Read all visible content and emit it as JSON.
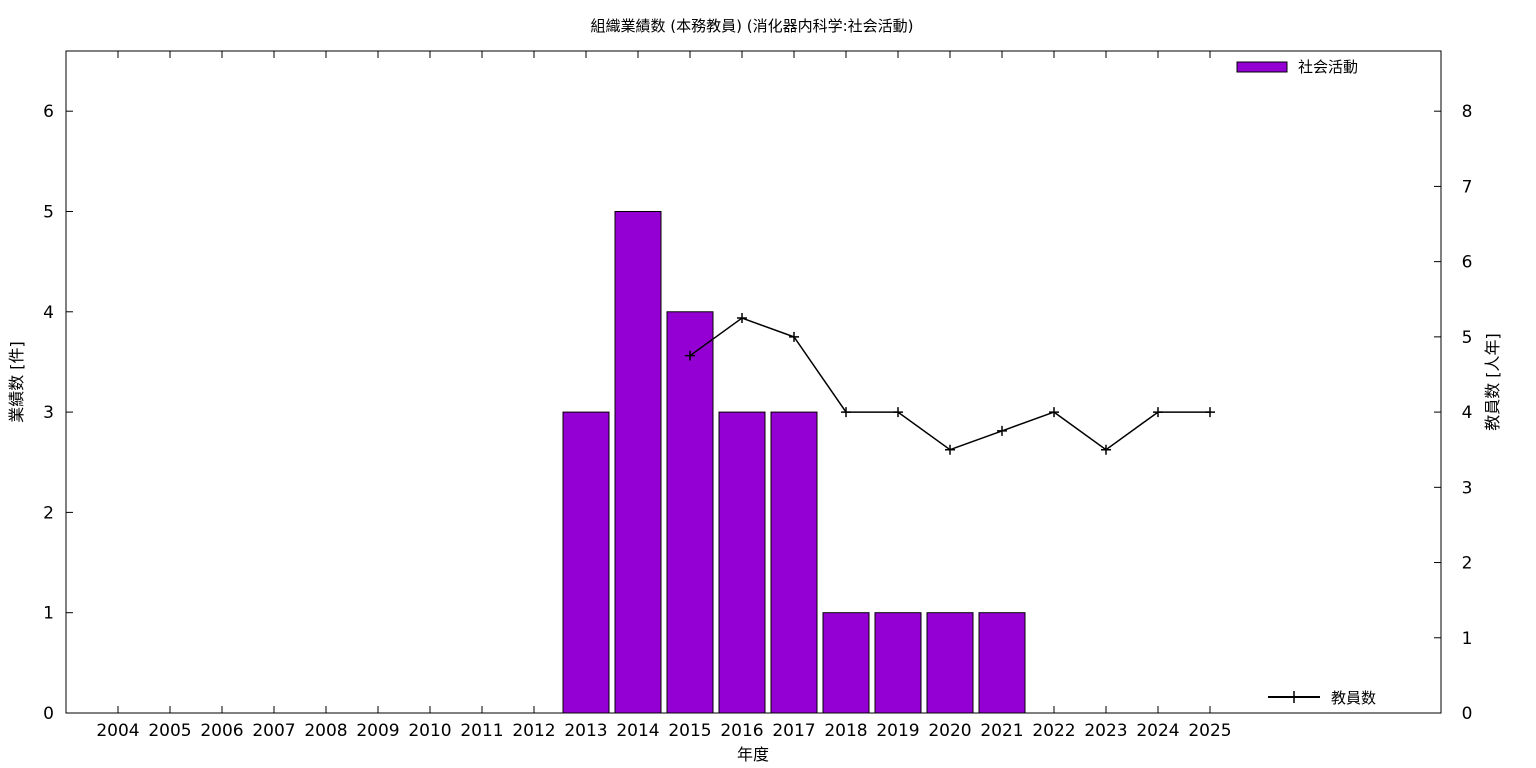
{
  "chart_data": {
    "type": "bar",
    "title": "組織業績数 (本務教員) (消化器内科学:社会活動)",
    "xlabel": "年度",
    "ylabel": "業績数 [件]",
    "y2label": "教員数 [人年]",
    "categories": [
      "2004",
      "2005",
      "2006",
      "2007",
      "2008",
      "2009",
      "2010",
      "2011",
      "2012",
      "2013",
      "2014",
      "2015",
      "2016",
      "2017",
      "2018",
      "2019",
      "2020",
      "2021",
      "2022",
      "2023",
      "2024",
      "2025"
    ],
    "ylim": [
      0,
      6.6
    ],
    "y2lim": [
      0,
      8.8
    ],
    "yticks": [
      0,
      1,
      2,
      3,
      4,
      5,
      6
    ],
    "y2ticks": [
      0,
      1,
      2,
      3,
      4,
      5,
      6,
      7,
      8
    ],
    "grid": false,
    "series": [
      {
        "name": "社会活動",
        "type": "bar",
        "axis": "left",
        "color": "#9400d3",
        "values": [
          0,
          0,
          0,
          0,
          0,
          0,
          0,
          0,
          0,
          3,
          5,
          4,
          3,
          3,
          1,
          1,
          1,
          1,
          0,
          0,
          0,
          0
        ]
      },
      {
        "name": "教員数",
        "type": "line",
        "axis": "right",
        "color": "#000000",
        "marker": "plus",
        "values": [
          null,
          null,
          null,
          null,
          null,
          null,
          null,
          null,
          null,
          null,
          null,
          4.75,
          5.25,
          5.0,
          4.0,
          4.0,
          3.5,
          3.75,
          4.0,
          3.5,
          4.0,
          4.0
        ]
      }
    ],
    "legend": [
      {
        "label": "社会活動",
        "position": "top-right"
      },
      {
        "label": "教員数",
        "position": "bottom-right"
      }
    ]
  }
}
